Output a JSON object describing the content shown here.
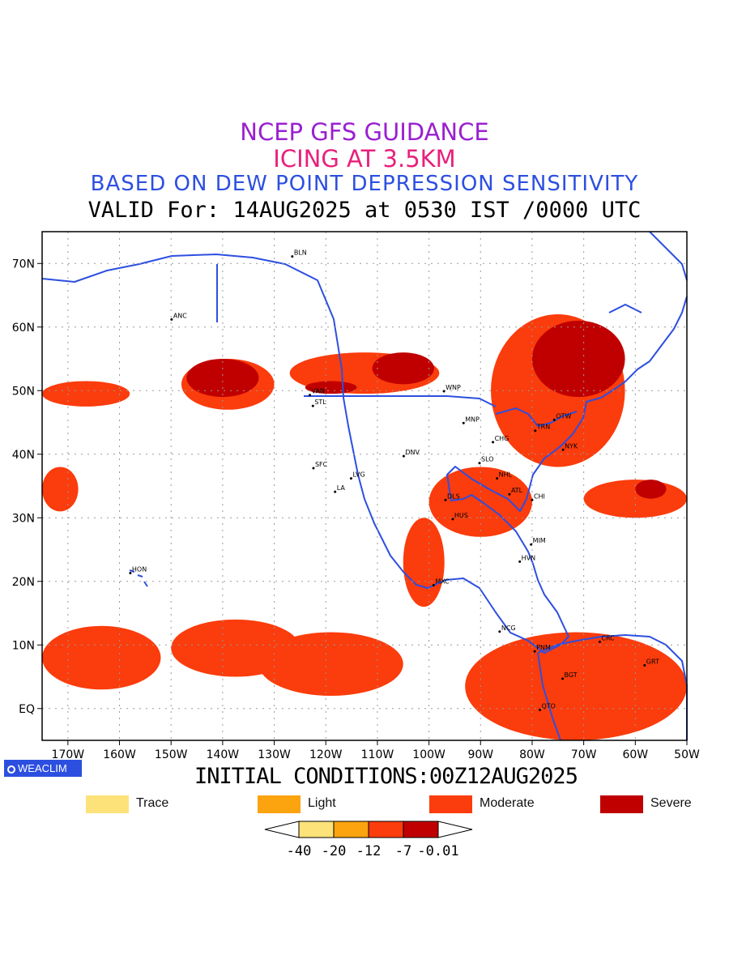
{
  "header": {
    "line1": "NCEP GFS GUIDANCE",
    "line2": "ICING AT 3.5KM",
    "line3": "BASED ON DEW POINT DEPRESSION SENSITIVITY",
    "line4": "VALID For: 14AUG2025 at 0530 IST /0000 UTC",
    "colors": {
      "line1": "#9a1fd0",
      "line2": "#e8207c",
      "line3": "#2d4fe0",
      "line4": "#000000"
    }
  },
  "map": {
    "lon_range": [
      -175,
      -50
    ],
    "lat_range": [
      -5,
      75
    ],
    "lat_ticks": [
      {
        "value": 70,
        "label": "70N"
      },
      {
        "value": 60,
        "label": "60N"
      },
      {
        "value": 50,
        "label": "50N"
      },
      {
        "value": 40,
        "label": "40N"
      },
      {
        "value": 30,
        "label": "30N"
      },
      {
        "value": 20,
        "label": "20N"
      },
      {
        "value": 10,
        "label": "10N"
      },
      {
        "value": 0,
        "label": "EQ"
      }
    ],
    "lon_ticks": [
      {
        "value": -170,
        "label": "170W"
      },
      {
        "value": -160,
        "label": "160W"
      },
      {
        "value": -150,
        "label": "150W"
      },
      {
        "value": -140,
        "label": "140W"
      },
      {
        "value": -130,
        "label": "130W"
      },
      {
        "value": -120,
        "label": "120W"
      },
      {
        "value": -110,
        "label": "110W"
      },
      {
        "value": -100,
        "label": "100W"
      },
      {
        "value": -90,
        "label": "90W"
      },
      {
        "value": -80,
        "label": "80W"
      },
      {
        "value": -70,
        "label": "70W"
      },
      {
        "value": -60,
        "label": "60W"
      },
      {
        "value": -50,
        "label": "50W"
      }
    ],
    "gridlines": true,
    "coast_color": "#2d4fe0",
    "stations": [
      {
        "code": "ANC",
        "lon": -149.9,
        "lat": 61.2
      },
      {
        "code": "BLN",
        "lon": -126.5,
        "lat": 71.1
      },
      {
        "code": "VAN",
        "lon": -123.1,
        "lat": 49.3
      },
      {
        "code": "STL",
        "lon": -122.5,
        "lat": 47.6
      },
      {
        "code": "WNP",
        "lon": -97.1,
        "lat": 49.9
      },
      {
        "code": "MNP",
        "lon": -93.3,
        "lat": 44.9
      },
      {
        "code": "CHG",
        "lon": -87.6,
        "lat": 41.9
      },
      {
        "code": "TRN",
        "lon": -79.4,
        "lat": 43.7
      },
      {
        "code": "OTW",
        "lon": -75.7,
        "lat": 45.4
      },
      {
        "code": "NYK",
        "lon": -74.0,
        "lat": 40.7
      },
      {
        "code": "DNV",
        "lon": -104.9,
        "lat": 39.7
      },
      {
        "code": "SLO",
        "lon": -90.2,
        "lat": 38.6
      },
      {
        "code": "SFC",
        "lon": -122.4,
        "lat": 37.8
      },
      {
        "code": "LVG",
        "lon": -115.1,
        "lat": 36.2
      },
      {
        "code": "LA",
        "lon": -118.2,
        "lat": 34.1
      },
      {
        "code": "NHL",
        "lon": -86.8,
        "lat": 36.2
      },
      {
        "code": "DLS",
        "lon": -96.8,
        "lat": 32.8
      },
      {
        "code": "ATL",
        "lon": -84.4,
        "lat": 33.7
      },
      {
        "code": "CHI",
        "lon": -80.0,
        "lat": 32.8
      },
      {
        "code": "HUS",
        "lon": -95.4,
        "lat": 29.8
      },
      {
        "code": "MIM",
        "lon": -80.2,
        "lat": 25.8
      },
      {
        "code": "HVN",
        "lon": -82.4,
        "lat": 23.1
      },
      {
        "code": "HON",
        "lon": -157.9,
        "lat": 21.3
      },
      {
        "code": "MXC",
        "lon": -99.1,
        "lat": 19.4
      },
      {
        "code": "NCG",
        "lon": -86.3,
        "lat": 12.1
      },
      {
        "code": "PNM",
        "lon": -79.5,
        "lat": 9.0
      },
      {
        "code": "CRC",
        "lon": -66.9,
        "lat": 10.5
      },
      {
        "code": "BGT",
        "lon": -74.1,
        "lat": 4.7
      },
      {
        "code": "QTO",
        "lon": -78.5,
        "lat": -0.2
      },
      {
        "code": "GRT",
        "lon": -58.2,
        "lat": 6.8
      }
    ],
    "icing_areas": [
      {
        "level": "moderate",
        "lon": [
          -175,
          -158
        ],
        "lat": [
          47.5,
          51.5
        ]
      },
      {
        "level": "moderate",
        "lon": [
          -148,
          -130
        ],
        "lat": [
          47,
          55
        ]
      },
      {
        "level": "severe",
        "lon": [
          -147,
          -133
        ],
        "lat": [
          49,
          55
        ]
      },
      {
        "level": "moderate",
        "lon": [
          -127,
          -98
        ],
        "lat": [
          49.5,
          56
        ]
      },
      {
        "level": "severe",
        "lon": [
          -124,
          -114
        ],
        "lat": [
          49.5,
          51.5
        ]
      },
      {
        "level": "severe",
        "lon": [
          -111,
          -99
        ],
        "lat": [
          51,
          56
        ]
      },
      {
        "level": "moderate",
        "lon": [
          -88,
          -62
        ],
        "lat": [
          38,
          62
        ]
      },
      {
        "level": "severe",
        "lon": [
          -80,
          -62
        ],
        "lat": [
          49,
          61
        ]
      },
      {
        "level": "moderate",
        "lon": [
          -100,
          -80
        ],
        "lat": [
          27,
          38
        ]
      },
      {
        "level": "moderate",
        "lon": [
          -175,
          -168
        ],
        "lat": [
          31,
          38
        ]
      },
      {
        "level": "moderate",
        "lon": [
          -70,
          -50
        ],
        "lat": [
          30,
          36
        ]
      },
      {
        "level": "severe",
        "lon": [
          -60,
          -54
        ],
        "lat": [
          33,
          36
        ]
      },
      {
        "level": "moderate",
        "lon": [
          -105,
          -97
        ],
        "lat": [
          16,
          30
        ]
      },
      {
        "level": "moderate",
        "lon": [
          -175,
          -152
        ],
        "lat": [
          3,
          13
        ]
      },
      {
        "level": "moderate",
        "lon": [
          -150,
          -125
        ],
        "lat": [
          5,
          14
        ]
      },
      {
        "level": "moderate",
        "lon": [
          -133,
          -105
        ],
        "lat": [
          2,
          12
        ]
      },
      {
        "level": "moderate",
        "lon": [
          -93,
          -50
        ],
        "lat": [
          -5,
          12
        ]
      }
    ]
  },
  "logo": "WEACLIM",
  "init_conditions": "INITIAL CONDITIONS:00Z12AUG2025",
  "legend": [
    {
      "label": "Trace",
      "color": "#fde27a"
    },
    {
      "label": "Light",
      "color": "#fca310"
    },
    {
      "label": "Moderate",
      "color": "#fb3c0c"
    },
    {
      "label": "Severe",
      "color": "#c00000"
    }
  ],
  "colorbar": {
    "colors": [
      "#fde27a",
      "#fca310",
      "#fb3c0c",
      "#c00000"
    ],
    "tick_labels": [
      "-40",
      "-20",
      "-12",
      "-7",
      "-0.01"
    ]
  }
}
